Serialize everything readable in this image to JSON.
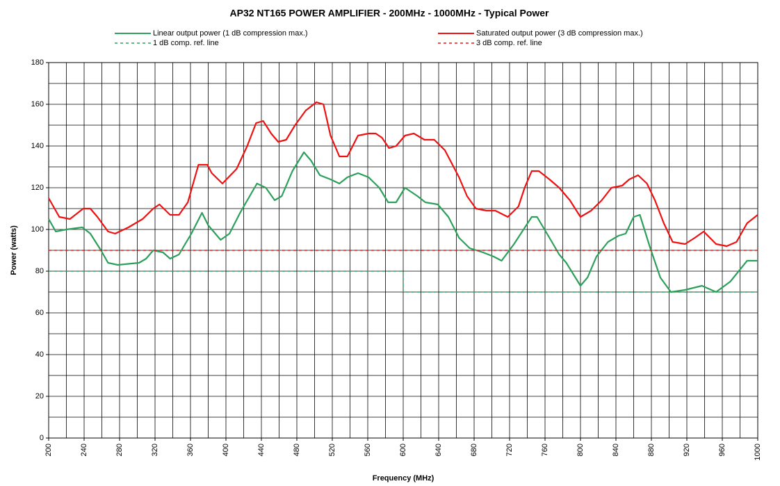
{
  "chart_data": {
    "type": "line",
    "title": "AP32 NT165 POWER AMPLIFIER - 200MHz - 1000MHz - Typical Power",
    "x_label": "Frequency (MHz)",
    "y_label": "Power (watts)",
    "xlim": [
      200,
      1000
    ],
    "ylim": [
      0,
      180
    ],
    "xticks": [
      200,
      240,
      280,
      320,
      360,
      400,
      440,
      480,
      520,
      560,
      600,
      640,
      680,
      720,
      760,
      800,
      840,
      880,
      920,
      960,
      1000
    ],
    "yticks": [
      0,
      20,
      40,
      60,
      80,
      100,
      120,
      140,
      160,
      180
    ],
    "xgrid": [
      200,
      220,
      240,
      260,
      280,
      300,
      320,
      340,
      360,
      380,
      400,
      420,
      440,
      460,
      480,
      500,
      520,
      540,
      560,
      580,
      600,
      620,
      640,
      660,
      680,
      700,
      720,
      740,
      760,
      780,
      800,
      820,
      840,
      860,
      880,
      900,
      920,
      940,
      960,
      980,
      1000
    ],
    "ygrid": [
      0,
      10,
      20,
      30,
      40,
      50,
      60,
      70,
      80,
      90,
      100,
      110,
      120,
      130,
      140,
      150,
      160,
      170,
      180
    ],
    "grid": true,
    "series": [
      {
        "name": "Linear output power (1 dB compression max.)",
        "color": "#2ca05a",
        "dash": "solid",
        "x": [
          200,
          208,
          220,
          238,
          247,
          259,
          267,
          278,
          302,
          310,
          318,
          329,
          337,
          347,
          361,
          373,
          380,
          394,
          404,
          416,
          435,
          445,
          455,
          463,
          475,
          488,
          496,
          506,
          518,
          528,
          537,
          549,
          561,
          573,
          583,
          592,
          602,
          616,
          625,
          639,
          651,
          663,
          675,
          690,
          702,
          711,
          725,
          745,
          751,
          765,
          776,
          784,
          800,
          808,
          818,
          831,
          843,
          851,
          860,
          867,
          878,
          890,
          902,
          918,
          937,
          953,
          969,
          988,
          1000
        ],
        "values": [
          105,
          99,
          100,
          101,
          98,
          90,
          84,
          83,
          84,
          86,
          90,
          89,
          86,
          88,
          98,
          108,
          102,
          95,
          98,
          108,
          122,
          120,
          114,
          116,
          128,
          137,
          133,
          126,
          124,
          122,
          125,
          127,
          125,
          120,
          113,
          113,
          120,
          116,
          113,
          112,
          106,
          96,
          91,
          89,
          87,
          85,
          93,
          106,
          106,
          96,
          88,
          84,
          73,
          77,
          87,
          94,
          97,
          98,
          106,
          107,
          92,
          77,
          70,
          71,
          73,
          70,
          75,
          85,
          85
        ]
      },
      {
        "name": "Saturated output power (3 dB compression max.)",
        "color": "#ee1111",
        "dash": "solid",
        "x": [
          200,
          212,
          224,
          239,
          247,
          255,
          267,
          275,
          290,
          306,
          318,
          325,
          337,
          347,
          357,
          369,
          379,
          384,
          396,
          412,
          424,
          434,
          442,
          451,
          459,
          468,
          478,
          490,
          502,
          510,
          518,
          528,
          537,
          549,
          561,
          569,
          576,
          584,
          592,
          602,
          612,
          624,
          635,
          647,
          663,
          672,
          682,
          694,
          704,
          718,
          730,
          737,
          745,
          753,
          765,
          776,
          788,
          800,
          812,
          824,
          835,
          847,
          855,
          865,
          875,
          884,
          894,
          904,
          918,
          929,
          939,
          953,
          965,
          976,
          988,
          1000
        ],
        "values": [
          115,
          106,
          105,
          110,
          110,
          106,
          99,
          98,
          101,
          105,
          110,
          112,
          107,
          107,
          113,
          131,
          131,
          127,
          122,
          129,
          140,
          151,
          152,
          146,
          142,
          143,
          150,
          157,
          161,
          160,
          145,
          135,
          135,
          145,
          146,
          146,
          144,
          139,
          140,
          145,
          146,
          143,
          143,
          138,
          125,
          116,
          110,
          109,
          109,
          106,
          111,
          120,
          128,
          128,
          124,
          120,
          114,
          106,
          109,
          114,
          120,
          121,
          124,
          126,
          122,
          114,
          103,
          94,
          93,
          96,
          99,
          93,
          92,
          94,
          103,
          107
        ]
      },
      {
        "name": "1 dB comp. ref. line",
        "color": "#2ca05a",
        "dash": "dashed",
        "x": [
          200,
          600,
          600,
          1000
        ],
        "values": [
          80,
          80,
          70,
          70
        ]
      },
      {
        "name": "3 dB comp. ref. line",
        "color": "#ee1111",
        "dash": "dashed",
        "x": [
          200,
          1000
        ],
        "values": [
          90,
          90
        ]
      }
    ]
  }
}
